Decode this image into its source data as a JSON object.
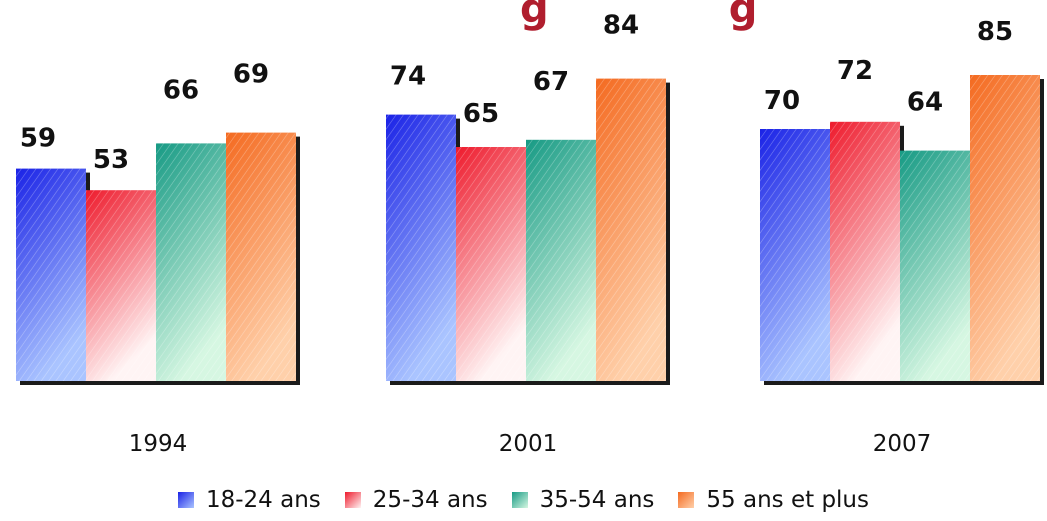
{
  "colors": {
    "18-24 ans": "#2a3cf0",
    "25-34 ans": "#f0293a",
    "35-54 ans": "#1e9a86",
    "55 ans et plus": "#f5742a"
  },
  "chart_data": {
    "type": "bar",
    "title": "",
    "xlabel": "",
    "ylabel": "",
    "categories": [
      "1994",
      "2001",
      "2007"
    ],
    "series": [
      {
        "name": "18-24 ans",
        "values": [
          59,
          74,
          70
        ]
      },
      {
        "name": "25-34 ans",
        "values": [
          53,
          65,
          72
        ]
      },
      {
        "name": "35-54 ans",
        "values": [
          66,
          67,
          64
        ]
      },
      {
        "name": "55 ans et plus",
        "values": [
          69,
          84,
          85
        ]
      }
    ],
    "data_labels": true,
    "legend": "bottom",
    "grid": false
  }
}
